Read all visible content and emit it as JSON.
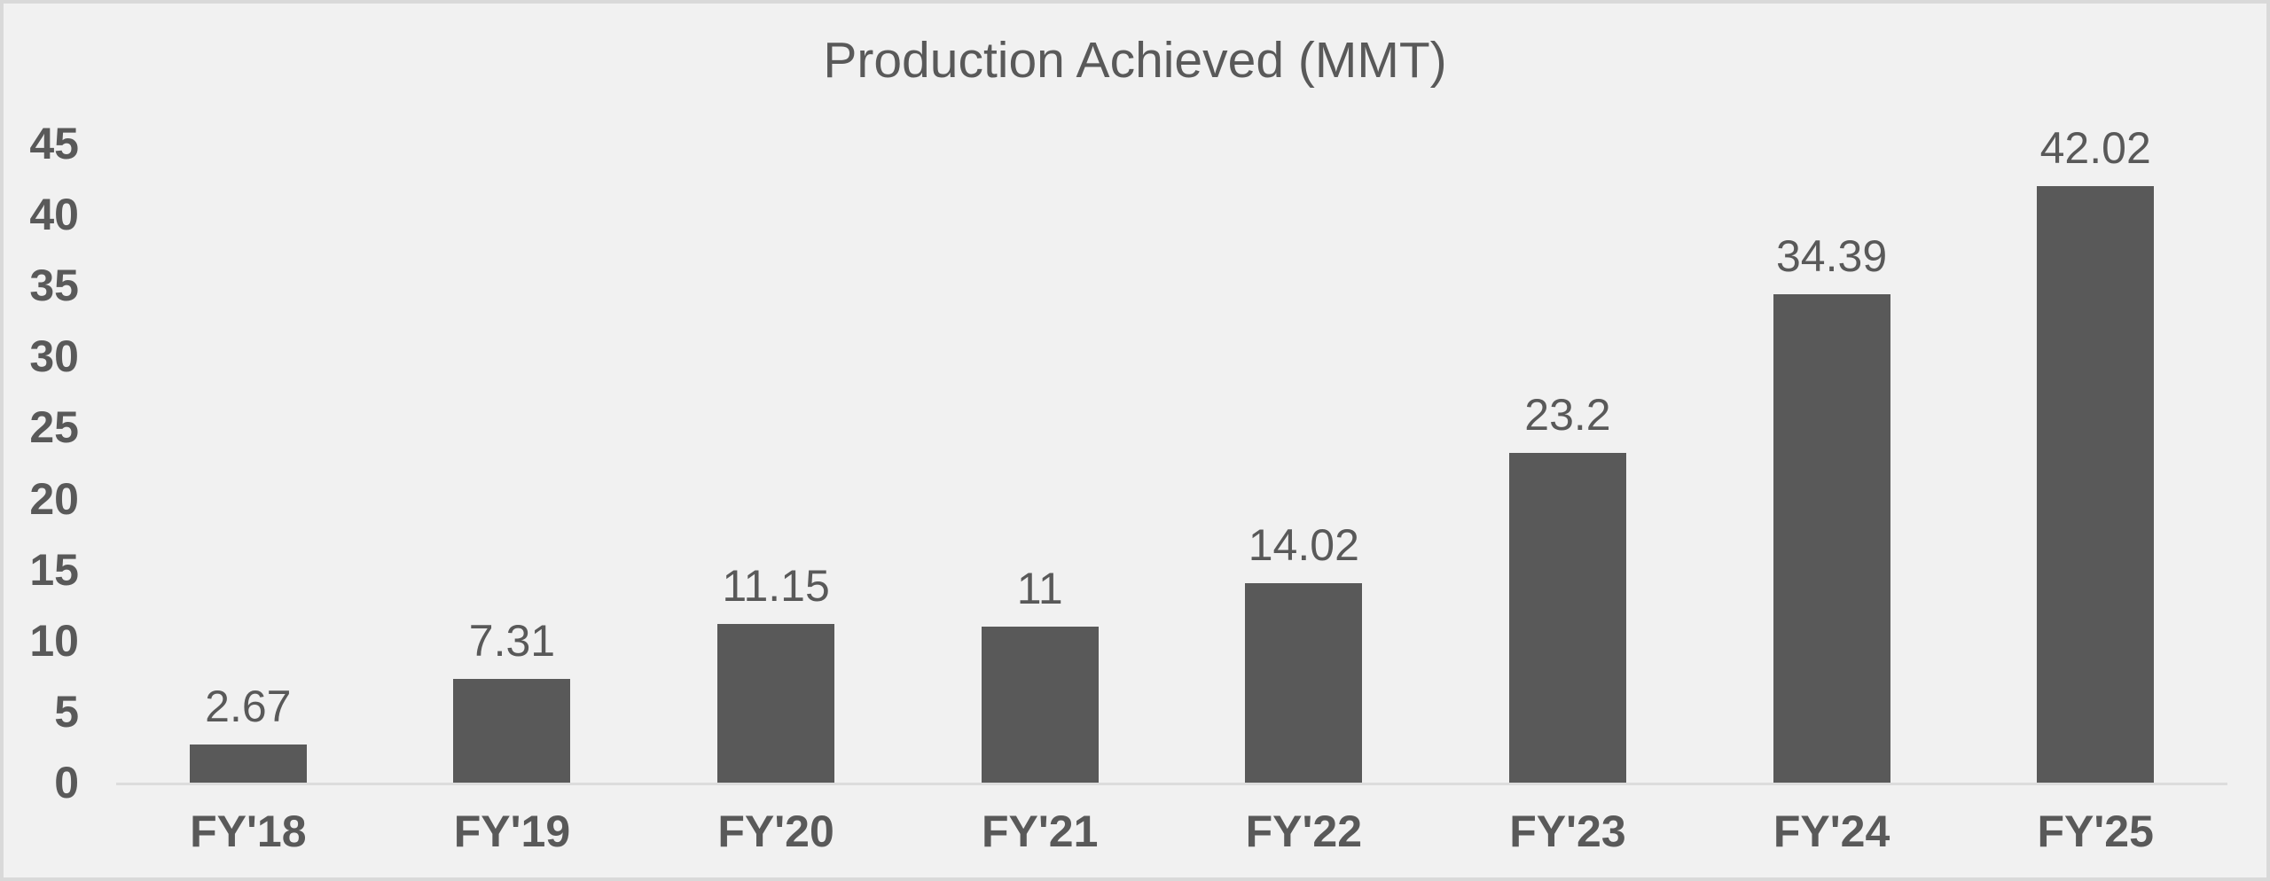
{
  "chart_data": {
    "type": "bar",
    "title": "Production Achieved (MMT)",
    "categories": [
      "FY'18",
      "FY'19",
      "FY'20",
      "FY'21",
      "FY'22",
      "FY'23",
      "FY'24",
      "FY'25"
    ],
    "values": [
      2.67,
      7.31,
      11.15,
      11,
      14.02,
      23.2,
      34.39,
      42.02
    ],
    "value_labels": [
      "2.67",
      "7.31",
      "11.15",
      "11",
      "14.02",
      "23.2",
      "34.39",
      "42.02"
    ],
    "yticks": [
      45,
      40,
      35,
      30,
      25,
      20,
      15,
      10,
      5,
      0
    ],
    "ylim": [
      0,
      45
    ],
    "xlabel": "",
    "ylabel": "",
    "grid": false,
    "legend_position": "none",
    "colors": {
      "bar": "#595959",
      "text": "#595959",
      "background": "#f1f1f1",
      "border": "#d9d9d9",
      "axis_line": "#dcdcdc"
    }
  }
}
